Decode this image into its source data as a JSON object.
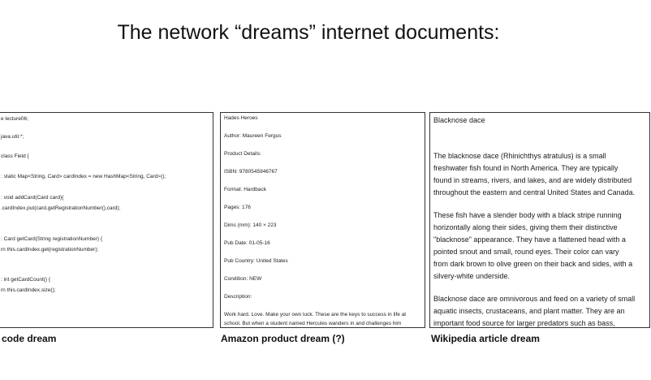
{
  "title": "The network “dreams” internet documents:",
  "code_panel": {
    "lines": [
      "e lecture06;",
      "java.util.*;",
      "class Field {",
      ": static Map<String, Card> cardIndex = new HashMap<String, Card>();",
      ": void addCard(Card card){",
      ".cardIndex.put(card.getRegistrationNumber(),card);",
      ": Card getCard(String registrationNumber) {",
      "rn this.cardIndex.get(registrationNumber);",
      ": int getCardCount() {",
      "rn this.cardIndex.size();"
    ],
    "caption": "code dream"
  },
  "amazon_panel": {
    "lines": [
      "Hades Heroes",
      "Author: Maureen Fergus",
      "Product Details:",
      "ISBN: 9780545946767",
      "Format: Hardback",
      "Pages: 176",
      "Dims (mm): 140 × 223",
      "Pub Date: 01-05-16",
      "Pub Country: United States",
      "Condition: NEW",
      "Description:",
      "Work hard. Love. Make your own luck. These are the keys to success in life at",
      "school. But when a student named Hercules wanders in and challenges him"
    ],
    "caption": "Amazon product dream (?)"
  },
  "wiki_panel": {
    "lines": [
      "Blacknose dace",
      "The blacknose dace (Rhinichthys atratulus) is a small",
      "freshwater fish found in North America. They are typically",
      "found in streams, rivers, and lakes, and are widely distributed",
      "throughout the eastern and central United States and Canada.",
      "These fish have a slender body with a black stripe running",
      "horizontally along their sides, giving them their distinctive",
      "\"blacknose\" appearance. They have a flattened head with a",
      "pointed snout and small, round eyes. Their color can vary",
      "from dark brown to olive green on their back and sides, with a",
      "silvery-white underside.",
      "Blacknose dace are omnivorous and feed on a variety of small",
      "aquatic insects, crustaceans, and plant matter. They are an",
      "important food source for larger predators such as bass,"
    ],
    "caption": "Wikipedia article dream"
  }
}
